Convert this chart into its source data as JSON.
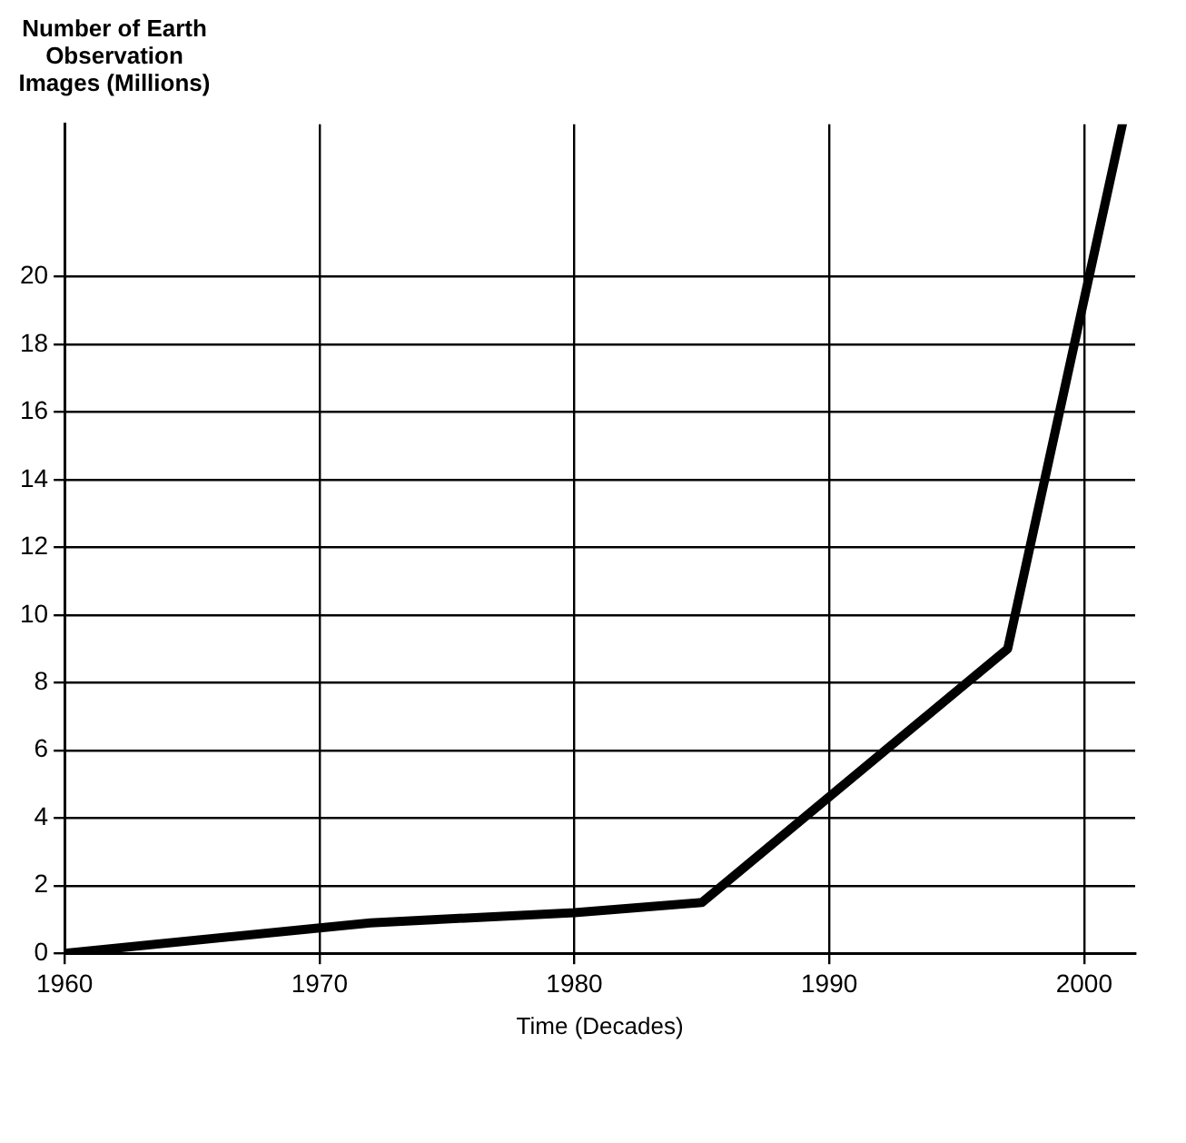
{
  "chart_data": {
    "type": "line",
    "ylabel": "Number of Earth Observation Images (Millions)",
    "xlabel": "Time (Decades)",
    "series": [
      {
        "color": "#000000",
        "x": [
          1960,
          1972,
          1980,
          1985,
          1997,
          2001.5
        ],
        "values": [
          0,
          0.9,
          1.2,
          1.5,
          9,
          24.5
        ]
      }
    ],
    "xlim": [
      1960,
      2002
    ],
    "xticks": [
      1960,
      1970,
      1980,
      1990,
      2000
    ],
    "ylim": [
      0,
      24.5
    ],
    "yticks": [
      0,
      2,
      4,
      6,
      8,
      10,
      12,
      14,
      16,
      18,
      20
    ],
    "grid": true,
    "legend": false,
    "marker": "none",
    "line_style": "solid"
  }
}
